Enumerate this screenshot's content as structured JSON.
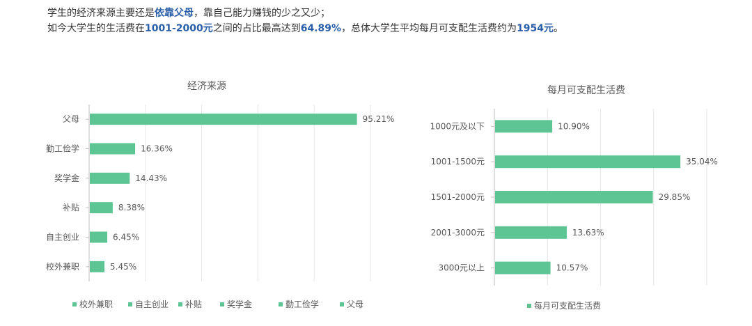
{
  "intro": {
    "line1_pre": "学生的经济来源主要还是",
    "line1_hl": "依靠父母",
    "line1_post": "，靠自己能力赚钱的少之又少；",
    "line2_pre": "如今大学生的生活费在",
    "line2_hl1": "1001-2000元",
    "line2_mid1": "之间的占比最高达到",
    "line2_hl2": "64.89%",
    "line2_mid2": "，总体大学生平均每月可支配生活费约为",
    "line2_hl3": "1954元",
    "line2_post": "。"
  },
  "colors": {
    "bar": "#5cc593",
    "highlight": "#2a5fa8"
  },
  "chart_data": [
    {
      "type": "bar",
      "orientation": "horizontal",
      "title": "经济来源",
      "categories": [
        "父母",
        "勤工俭学",
        "奖学金",
        "补贴",
        "自主创业",
        "校外兼职"
      ],
      "values": [
        95.21,
        16.36,
        14.43,
        8.38,
        6.45,
        5.45
      ],
      "value_labels": [
        "95.21%",
        "16.36%",
        "14.43%",
        "8.38%",
        "6.45%",
        "5.45%"
      ],
      "xlim": [
        0,
        100
      ],
      "grid": true,
      "legend_position": "bottom",
      "legend": [
        "校外兼职",
        "自主创业",
        "补贴",
        "奖学金",
        "勤工俭学",
        "父母"
      ]
    },
    {
      "type": "bar",
      "orientation": "horizontal",
      "title": "每月可支配生活费",
      "categories": [
        "1000元及以下",
        "1001-1500元",
        "1501-2000元",
        "2001-3000元",
        "3000元以上"
      ],
      "values": [
        10.9,
        35.04,
        29.85,
        13.63,
        10.57
      ],
      "value_labels": [
        "10.90%",
        "35.04%",
        "29.85%",
        "13.63%",
        "10.57%"
      ],
      "xlim": [
        0,
        40
      ],
      "grid": true,
      "legend_position": "bottom",
      "legend": [
        "每月可支配生活费"
      ]
    }
  ]
}
